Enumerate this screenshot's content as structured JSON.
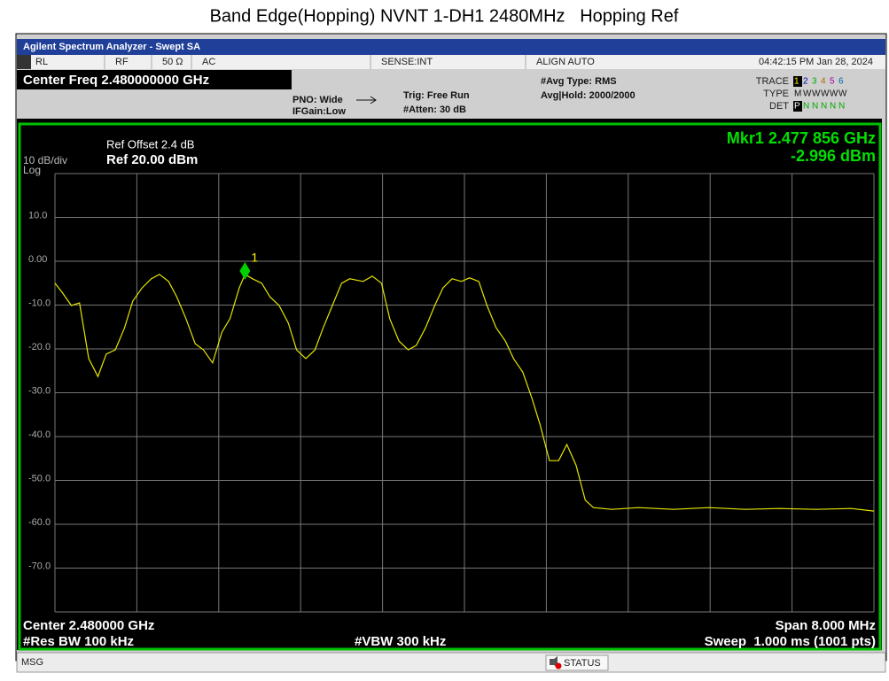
{
  "title": "Band Edge(Hopping) NVNT 1-DH1 2480MHz   Hopping Ref",
  "instrument": {
    "window_title": "Agilent Spectrum Analyzer - Swept SA",
    "status_bar": [
      "RL",
      "RF",
      "50 Ω",
      "AC",
      "SENSE:INT",
      "ALIGN AUTO",
      "04:42:15 PM Jan 28, 2024"
    ],
    "center_freq_header": "Center Freq 2.480000000 GHz",
    "pno": "PNO: Wide",
    "ifgain": "IFGain:Low",
    "trig": "Trig: Free Run",
    "atten": "#Atten: 30 dB",
    "avg_type": "#Avg Type: RMS",
    "avg_hold": "Avg|Hold: 2000/2000",
    "trace_label": "TRACE",
    "type_label": "TYPE",
    "det_label": "DET",
    "trace_nums": [
      "1",
      "2",
      "3",
      "4",
      "5",
      "6"
    ],
    "type_codes": [
      "M",
      "W",
      "W",
      "W",
      "W",
      "W"
    ],
    "det_codes": [
      "P",
      "N",
      "N",
      "N",
      "N",
      "N"
    ],
    "ref_offset": "Ref Offset 2.4 dB",
    "ref_level": "Ref 20.00 dBm",
    "scale": "10 dB/div",
    "scale_type": "Log",
    "footer": {
      "center": "Center 2.480000 GHz",
      "span": "Span 8.000 MHz",
      "rbw": "#Res BW 100 kHz",
      "vbw": "#VBW 300 kHz",
      "sweep": "Sweep  1.000 ms (1001 pts)"
    },
    "msg": "MSG",
    "status": "STATUS"
  },
  "chart_data": {
    "type": "line",
    "xlim": [
      2.476,
      2.484
    ],
    "ylim": [
      -80,
      20
    ],
    "yticks": [
      {
        "value": 10,
        "label": "10.0"
      },
      {
        "value": 0,
        "label": "0.00"
      },
      {
        "value": -10,
        "label": "-10.0"
      },
      {
        "value": -20,
        "label": "-20.0"
      },
      {
        "value": -30,
        "label": "-30.0"
      },
      {
        "value": -40,
        "label": "-40.0"
      },
      {
        "value": -50,
        "label": "-50.0"
      },
      {
        "value": -60,
        "label": "-60.0"
      },
      {
        "value": -70,
        "label": "-70.0"
      }
    ],
    "grid": true,
    "series": [
      {
        "color": "#e6e600",
        "x": [
          2.476,
          2.47607,
          2.47616,
          2.47624,
          2.47633,
          2.47642,
          2.4765,
          2.47659,
          2.47668,
          2.47676,
          2.47685,
          2.47694,
          2.47702,
          2.47711,
          2.47719,
          2.47728,
          2.47737,
          2.47745,
          2.47754,
          2.47763,
          2.47771,
          2.4778,
          2.477856,
          2.47793,
          2.47802,
          2.4781,
          2.47819,
          2.47828,
          2.47836,
          2.47845,
          2.47854,
          2.47862,
          2.47871,
          2.4788,
          2.47888,
          2.47901,
          2.4791,
          2.47919,
          2.47927,
          2.47936,
          2.47945,
          2.47953,
          2.47962,
          2.47971,
          2.47979,
          2.47988,
          2.47997,
          2.48005,
          2.48014,
          2.48022,
          2.48031,
          2.4804,
          2.48048,
          2.48057,
          2.48066,
          2.48074,
          2.48083,
          2.48092,
          2.481,
          2.48109,
          2.48118,
          2.48126,
          2.48144,
          2.4817,
          2.48204,
          2.48239,
          2.48274,
          2.48308,
          2.48343,
          2.48378,
          2.484
        ],
        "values": [
          -5.0,
          -7.1,
          -10.1,
          -9.5,
          -22.2,
          -26.3,
          -21.2,
          -20.2,
          -15.2,
          -9.1,
          -6.1,
          -4.0,
          -3.0,
          -4.6,
          -8.1,
          -13.1,
          -18.8,
          -20.2,
          -23.2,
          -16.2,
          -13.1,
          -6.1,
          -2.996,
          -4.0,
          -5.0,
          -8.1,
          -10.1,
          -14.1,
          -20.2,
          -22.2,
          -20.2,
          -15.2,
          -10.1,
          -5.0,
          -4.0,
          -4.6,
          -3.4,
          -5.0,
          -13.1,
          -18.2,
          -20.2,
          -19.2,
          -15.2,
          -10.1,
          -6.1,
          -4.0,
          -4.6,
          -3.8,
          -4.6,
          -10.1,
          -15.2,
          -18.2,
          -22.2,
          -25.3,
          -31.3,
          -37.4,
          -45.5,
          -45.5,
          -41.8,
          -46.5,
          -54.5,
          -56.2,
          -56.6,
          -56.2,
          -56.6,
          -56.2,
          -56.6,
          -56.4,
          -56.6,
          -56.4,
          -57.0
        ]
      }
    ],
    "marker": {
      "label": "1",
      "x": 2.477856,
      "value": -2.996,
      "readout_freq": "Mkr1 2.477 856 GHz",
      "readout_amp": "-2.996 dBm"
    }
  }
}
